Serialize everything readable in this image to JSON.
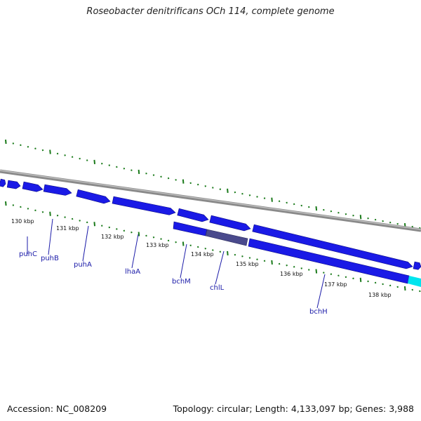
{
  "title": "Roseobacter denitrificans OCh 114, complete genome",
  "accession": "Accession: NC_008209",
  "summary": "Topology: circular; Length: 4,133,097 bp; Genes: 3,988",
  "colors": {
    "gene_forward": "#1a1ae6",
    "gene_dark": "#4a4a8c",
    "gene_highlight": "#00e5ee",
    "backbone": "#8a8a8a",
    "ticks": "#1a7a1a",
    "labels": "#1a1aa8"
  },
  "kbp_ticks": [
    "130 kbp",
    "131 kbp",
    "132 kbp",
    "133 kbp",
    "134 kbp",
    "135 kbp",
    "136 kbp",
    "137 kbp",
    "138 kbp"
  ],
  "genes": [
    "puhC",
    "puhB",
    "puhA",
    "lhaA",
    "bchM",
    "chlL",
    "bchH"
  ]
}
